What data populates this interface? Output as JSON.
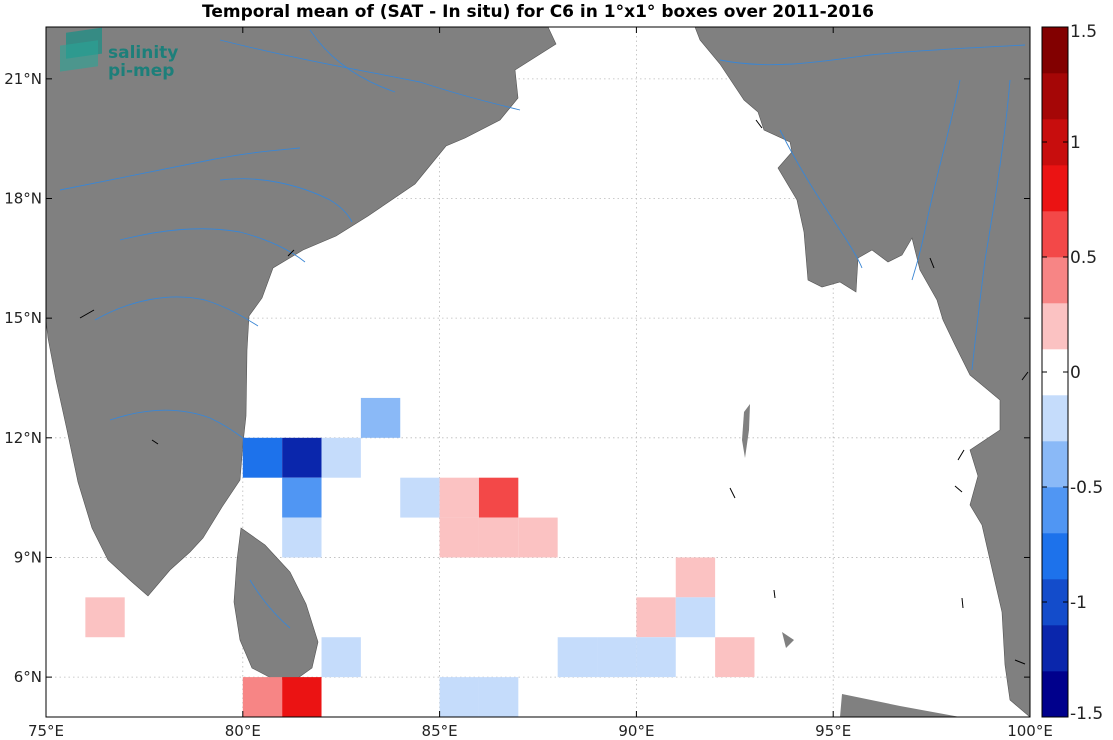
{
  "title": "Temporal mean of (SAT - In situ) for C6 in 1°x1° boxes over 2011-2016",
  "logo": {
    "line1": "salinity",
    "line2": "pi-mep",
    "icon": "salinity-pimep-logo-icon"
  },
  "map": {
    "lon_range": [
      75,
      100
    ],
    "lat_range": [
      5,
      22.3
    ],
    "grid": true,
    "land_color": "#808080",
    "river_color": "#3a86d4",
    "lon_ticks": [
      {
        "value": 75,
        "label": "75°E"
      },
      {
        "value": 80,
        "label": "80°E"
      },
      {
        "value": 85,
        "label": "85°E"
      },
      {
        "value": 90,
        "label": "90°E"
      },
      {
        "value": 95,
        "label": "95°E"
      },
      {
        "value": 100,
        "label": "100°E"
      }
    ],
    "lat_ticks": [
      {
        "value": 6,
        "label": "6°N"
      },
      {
        "value": 9,
        "label": "9°N"
      },
      {
        "value": 12,
        "label": "12°N"
      },
      {
        "value": 15,
        "label": "15°N"
      },
      {
        "value": 18,
        "label": "18°N"
      },
      {
        "value": 21,
        "label": "21°N"
      }
    ]
  },
  "colorbar": {
    "range": [
      -1.5,
      1.5
    ],
    "ticks": [
      {
        "value": 1.5,
        "label": "1.5"
      },
      {
        "value": 1,
        "label": "1"
      },
      {
        "value": 0.5,
        "label": "0.5"
      },
      {
        "value": 0,
        "label": "0"
      },
      {
        "value": -0.5,
        "label": "-0.5"
      },
      {
        "value": -1,
        "label": "-1"
      },
      {
        "value": -1.5,
        "label": "-1.5"
      }
    ]
  },
  "chart_data": {
    "type": "heatmap",
    "title": "Temporal mean of (SAT - In situ) for C6 in 1°x1° boxes over 2011-2016",
    "cell_size_deg": 1,
    "cells": [
      {
        "lon": 83,
        "lat": 12,
        "value": -0.4
      },
      {
        "lon": 80,
        "lat": 11,
        "value": -0.75
      },
      {
        "lon": 81,
        "lat": 11,
        "value": -1.15
      },
      {
        "lon": 82,
        "lat": 11,
        "value": -0.15
      },
      {
        "lon": 81,
        "lat": 10,
        "value": -0.65
      },
      {
        "lon": 84,
        "lat": 10,
        "value": -0.15
      },
      {
        "lon": 85,
        "lat": 10,
        "value": 0.15
      },
      {
        "lon": 86,
        "lat": 10,
        "value": 0.55
      },
      {
        "lon": 81,
        "lat": 9,
        "value": -0.25
      },
      {
        "lon": 85,
        "lat": 9,
        "value": 0.15
      },
      {
        "lon": 86,
        "lat": 9,
        "value": 0.15
      },
      {
        "lon": 87,
        "lat": 9,
        "value": 0.15
      },
      {
        "lon": 91,
        "lat": 8,
        "value": 0.15
      },
      {
        "lon": 76,
        "lat": 7,
        "value": 0.2
      },
      {
        "lon": 90,
        "lat": 7,
        "value": 0.15
      },
      {
        "lon": 91,
        "lat": 7,
        "value": -0.15
      },
      {
        "lon": 82,
        "lat": 6,
        "value": -0.25
      },
      {
        "lon": 88,
        "lat": 6,
        "value": -0.15
      },
      {
        "lon": 89,
        "lat": 6,
        "value": -0.25
      },
      {
        "lon": 90,
        "lat": 6,
        "value": -0.15
      },
      {
        "lon": 92,
        "lat": 6,
        "value": 0.15
      },
      {
        "lon": 80,
        "lat": 5,
        "value": 0.45
      },
      {
        "lon": 81,
        "lat": 5,
        "value": 0.85
      },
      {
        "lon": 85,
        "lat": 5,
        "value": -0.15
      },
      {
        "lon": 86,
        "lat": 5,
        "value": -0.15
      }
    ]
  }
}
